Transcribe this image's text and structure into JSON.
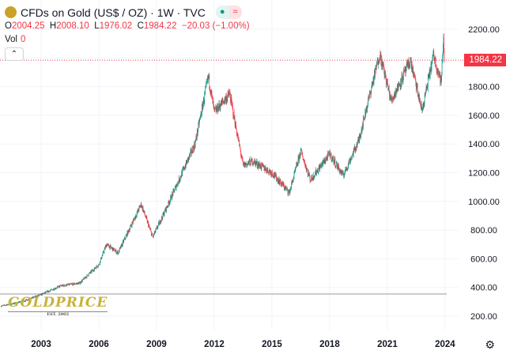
{
  "header": {
    "title": "CFDs on Gold (US$ / OZ) · 1W · TVC",
    "badge_icon": "wave-approx-icon"
  },
  "ohlc": {
    "o_label": "O",
    "o": "2004.25",
    "h_label": "H",
    "h": "2008.10",
    "l_label": "L",
    "l": "1976.02",
    "c_label": "C",
    "c": "1984.22",
    "change": "−20.03 (−1.00%)"
  },
  "volume": {
    "label": "Vol",
    "value": "0"
  },
  "watermark": {
    "text": "GOLDPRICE",
    "sub": "EST. 2002"
  },
  "colors": {
    "up": "#089981",
    "down": "#f23645",
    "grid": "#f0f3fa"
  },
  "chart_data": {
    "type": "candlestick",
    "title": "CFDs on Gold (US$ / OZ) · 1W · TVC",
    "ylim": [
      200,
      2200
    ],
    "xlim": [
      2000.9,
      2025.6
    ],
    "y_ticks": [
      "200.00",
      "400.00",
      "600.00",
      "800.00",
      "1000.00",
      "1200.00",
      "1400.00",
      "1600.00",
      "1800.00",
      "2200.00"
    ],
    "x_ticks": [
      "2003",
      "2006",
      "2009",
      "2012",
      "2015",
      "2018",
      "2021",
      "2024"
    ],
    "last_price": "1984.22",
    "grid": true,
    "approx_path": [
      [
        2000.9,
        270
      ],
      [
        2002,
        300
      ],
      [
        2003,
        350
      ],
      [
        2004,
        410
      ],
      [
        2005,
        430
      ],
      [
        2006,
        560
      ],
      [
        2006.4,
        700
      ],
      [
        2007,
        640
      ],
      [
        2008.2,
        980
      ],
      [
        2008.8,
        750
      ],
      [
        2009.5,
        950
      ],
      [
        2010,
        1100
      ],
      [
        2011,
        1400
      ],
      [
        2011.7,
        1870
      ],
      [
        2012,
        1620
      ],
      [
        2012.8,
        1750
      ],
      [
        2013.5,
        1250
      ],
      [
        2014,
        1280
      ],
      [
        2015,
        1200
      ],
      [
        2015.9,
        1060
      ],
      [
        2016.5,
        1350
      ],
      [
        2017,
        1150
      ],
      [
        2018,
        1330
      ],
      [
        2018.7,
        1180
      ],
      [
        2019.5,
        1420
      ],
      [
        2020.6,
        2030
      ],
      [
        2021.2,
        1700
      ],
      [
        2022.2,
        1980
      ],
      [
        2022.8,
        1630
      ],
      [
        2023.4,
        2020
      ],
      [
        2023.8,
        1830
      ],
      [
        2023.92,
        2140
      ],
      [
        2023.96,
        1984
      ]
    ]
  }
}
